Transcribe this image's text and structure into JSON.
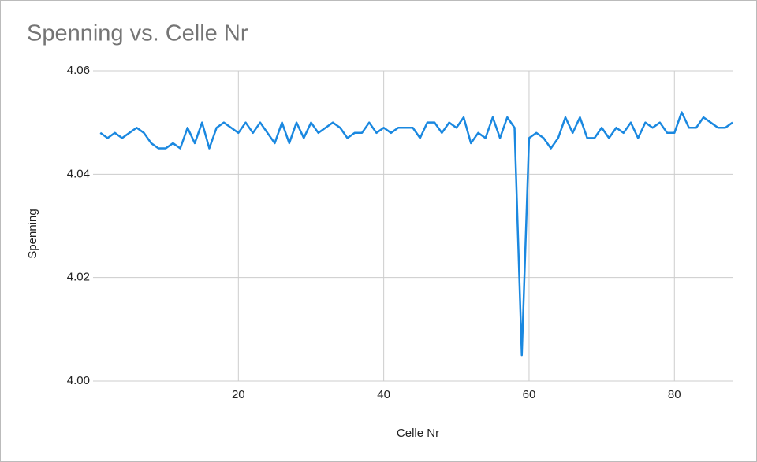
{
  "chart_data": {
    "type": "line",
    "title": "Spenning vs. Celle Nr",
    "x_label": "Celle Nr",
    "y_label": "Spenning",
    "x": [
      1,
      2,
      3,
      4,
      5,
      6,
      7,
      8,
      9,
      10,
      11,
      12,
      13,
      14,
      15,
      16,
      17,
      18,
      19,
      20,
      21,
      22,
      23,
      24,
      25,
      26,
      27,
      28,
      29,
      30,
      31,
      32,
      33,
      34,
      35,
      36,
      37,
      38,
      39,
      40,
      41,
      42,
      43,
      44,
      45,
      46,
      47,
      48,
      49,
      50,
      51,
      52,
      53,
      54,
      55,
      56,
      57,
      58,
      59,
      60,
      61,
      62,
      63,
      64,
      65,
      66,
      67,
      68,
      69,
      70,
      71,
      72,
      73,
      74,
      75,
      76,
      77,
      78,
      79,
      80,
      81,
      82,
      83,
      84,
      85,
      86,
      87,
      88
    ],
    "series": [
      {
        "name": "Spenning",
        "color": "#1a88e0",
        "values": [
          4.048,
          4.047,
          4.048,
          4.047,
          4.048,
          4.049,
          4.048,
          4.046,
          4.045,
          4.045,
          4.046,
          4.045,
          4.049,
          4.046,
          4.05,
          4.045,
          4.049,
          4.05,
          4.049,
          4.048,
          4.05,
          4.048,
          4.05,
          4.048,
          4.046,
          4.05,
          4.046,
          4.05,
          4.047,
          4.05,
          4.048,
          4.049,
          4.05,
          4.049,
          4.047,
          4.048,
          4.048,
          4.05,
          4.048,
          4.049,
          4.048,
          4.049,
          4.049,
          4.049,
          4.047,
          4.05,
          4.05,
          4.048,
          4.05,
          4.049,
          4.051,
          4.046,
          4.048,
          4.047,
          4.051,
          4.047,
          4.051,
          4.049,
          4.005,
          4.047,
          4.048,
          4.047,
          4.045,
          4.047,
          4.051,
          4.048,
          4.051,
          4.047,
          4.047,
          4.049,
          4.047,
          4.049,
          4.048,
          4.05,
          4.047,
          4.05,
          4.049,
          4.05,
          4.048,
          4.048,
          4.052,
          4.049,
          4.049,
          4.051,
          4.05,
          4.049,
          4.049,
          4.05
        ]
      }
    ],
    "xlim": [
      0,
      88
    ],
    "xticks": [
      20,
      40,
      60,
      80
    ],
    "ylim": [
      4,
      4.06
    ],
    "yticks": [
      {
        "value": 4,
        "label": "4.00"
      },
      4.02,
      4.04,
      4.06
    ],
    "grid": true
  }
}
